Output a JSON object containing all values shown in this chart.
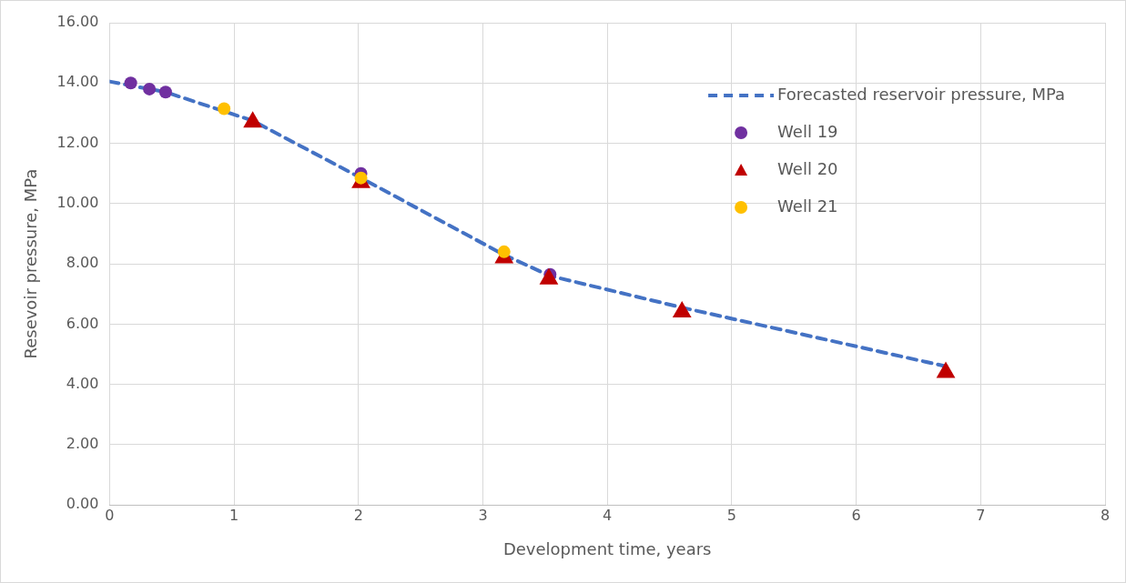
{
  "chart_data": {
    "type": "scatter",
    "xlabel": "Development time, years",
    "ylabel": "Resevoir pressure, MPa",
    "xlim": [
      0,
      8
    ],
    "xticks": [
      0,
      1,
      2,
      3,
      4,
      5,
      6,
      7,
      8
    ],
    "ylim": [
      0,
      16
    ],
    "yticks": [
      {
        "value": 0,
        "label": "0.00"
      },
      {
        "value": 2,
        "label": "2.00"
      },
      {
        "value": 4,
        "label": "4.00"
      },
      {
        "value": 6,
        "label": "6.00"
      },
      {
        "value": 8,
        "label": "8.00"
      },
      {
        "value": 10,
        "label": "10.00"
      },
      {
        "value": 12,
        "label": "12.00"
      },
      {
        "value": 14,
        "label": "14.00"
      },
      {
        "value": 16,
        "label": "16.00"
      }
    ],
    "grid": true,
    "legend": "top right",
    "series": [
      {
        "name": "Forecasted reservoir pressure, MPa",
        "type": "line",
        "line_style": "dashed",
        "marker": "none",
        "color": "#4472c4",
        "x": [
          0,
          0.45,
          1.15,
          2.02,
          3.17,
          3.54,
          4.6,
          6.72
        ],
        "values": [
          14.05,
          13.7,
          12.75,
          10.85,
          8.3,
          7.6,
          6.55,
          4.6
        ]
      },
      {
        "name": "Well 19",
        "marker": "circle",
        "color": "#7030a0",
        "x": [
          0.17,
          0.32,
          0.45,
          2.02,
          3.54
        ],
        "values": [
          14.0,
          13.8,
          13.7,
          11.0,
          7.65
        ]
      },
      {
        "name": "Well 20",
        "marker": "triangle",
        "color": "#c00000",
        "x": [
          1.15,
          2.02,
          3.17,
          3.53,
          4.6,
          6.72
        ],
        "values": [
          12.7,
          10.7,
          8.2,
          7.5,
          6.4,
          4.4
        ]
      },
      {
        "name": "Well 21",
        "marker": "circle",
        "color": "#ffc000",
        "x": [
          0.92,
          2.02,
          3.17
        ],
        "values": [
          13.15,
          10.85,
          8.4
        ]
      }
    ]
  }
}
